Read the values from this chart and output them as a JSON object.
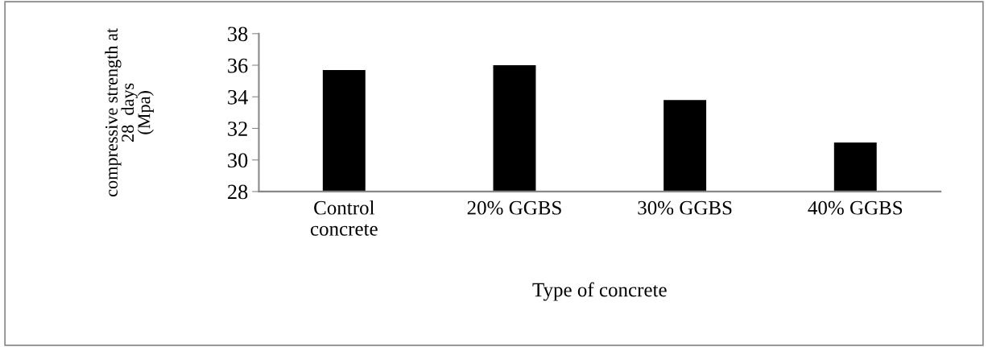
{
  "chart_data": {
    "type": "bar",
    "xlabel": "Type of concrete",
    "ylabel": "compressive strength at\n28  days\n(Mpa)",
    "categories": [
      "Control\nconcrete",
      "20% GGBS",
      "30% GGBS",
      "40% GGBS"
    ],
    "values": [
      35.7,
      36.0,
      33.8,
      31.1
    ],
    "color": "#000000",
    "ylim": [
      28,
      38
    ],
    "yticks": [
      28,
      30,
      32,
      34,
      36,
      38
    ],
    "grid": false
  }
}
